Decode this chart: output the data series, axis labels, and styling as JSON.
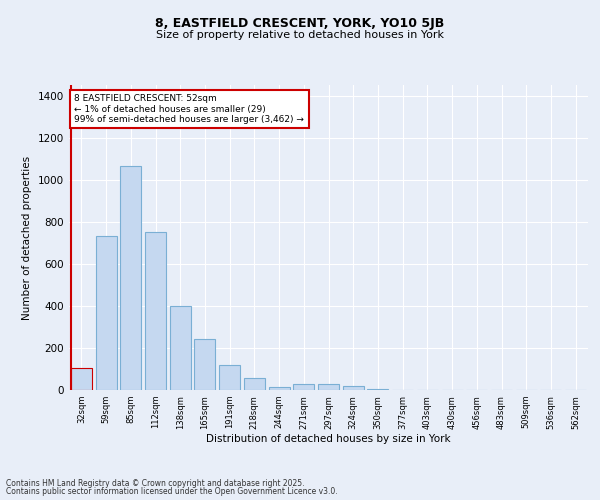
{
  "title_line1": "8, EASTFIELD CRESCENT, YORK, YO10 5JB",
  "title_line2": "Size of property relative to detached houses in York",
  "xlabel": "Distribution of detached houses by size in York",
  "ylabel": "Number of detached properties",
  "categories": [
    "32sqm",
    "59sqm",
    "85sqm",
    "112sqm",
    "138sqm",
    "165sqm",
    "191sqm",
    "218sqm",
    "244sqm",
    "271sqm",
    "297sqm",
    "324sqm",
    "350sqm",
    "377sqm",
    "403sqm",
    "430sqm",
    "456sqm",
    "483sqm",
    "509sqm",
    "536sqm",
    "562sqm"
  ],
  "values": [
    105,
    730,
    1065,
    750,
    400,
    243,
    120,
    55,
    15,
    30,
    28,
    20,
    5,
    0,
    0,
    0,
    0,
    0,
    0,
    0,
    0
  ],
  "bar_color": "#c5d8f0",
  "bar_edge_color": "#7aafd4",
  "highlight_bar_index": 0,
  "highlight_edge_color": "#cc0000",
  "annotation_text": "8 EASTFIELD CRESCENT: 52sqm\n← 1% of detached houses are smaller (29)\n99% of semi-detached houses are larger (3,462) →",
  "annotation_box_color": "#ffffff",
  "annotation_box_edge_color": "#cc0000",
  "vline_color": "#cc0000",
  "ylim": [
    0,
    1450
  ],
  "yticks": [
    0,
    200,
    400,
    600,
    800,
    1000,
    1200,
    1400
  ],
  "bg_color": "#e8eef8",
  "grid_color": "#ffffff",
  "footer_line1": "Contains HM Land Registry data © Crown copyright and database right 2025.",
  "footer_line2": "Contains public sector information licensed under the Open Government Licence v3.0."
}
